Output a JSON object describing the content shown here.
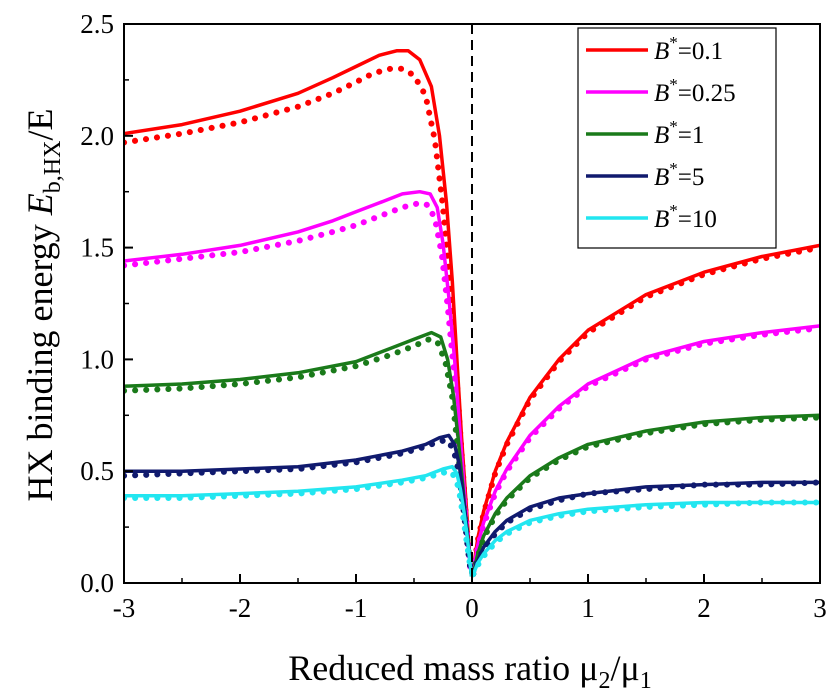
{
  "chart_data": {
    "type": "line",
    "xlabel": "Reduced mass ratio μ2/μ1",
    "xlabel_main": "Reduced mass ratio μ",
    "xlabel_sub1": "2",
    "xlabel_slash": "/μ",
    "xlabel_sub2": "1",
    "ylabel": "HX binding energy E b,HX /E",
    "ylabel_main": "HX binding energy ",
    "ylabel_E": "E",
    "ylabel_sub": "b,HX",
    "ylabel_tail": "/E",
    "xlim": [
      -3,
      3
    ],
    "ylim": [
      0,
      2.5
    ],
    "xticks": [
      -3,
      -2,
      -1,
      0,
      1,
      2,
      3
    ],
    "xtick_labels": [
      "-3",
      "-2",
      "-1",
      "0",
      "1",
      "2",
      "3"
    ],
    "yticks": [
      0,
      0.5,
      1.0,
      1.5,
      2.0,
      2.5
    ],
    "ytick_labels": [
      "0.0",
      "0.5",
      "1.0",
      "1.5",
      "2.0",
      "2.5"
    ],
    "vline_x": 0,
    "legend_position": "top-right",
    "series": [
      {
        "name": "B*=0.1",
        "label_var": "B",
        "label_sup": "*",
        "label_val": "=0.1",
        "color": "#ff0000",
        "solid_neg": [
          [
            -3,
            2.01
          ],
          [
            -2.5,
            2.05
          ],
          [
            -2.0,
            2.11
          ],
          [
            -1.5,
            2.19
          ],
          [
            -1.2,
            2.26
          ],
          [
            -1.0,
            2.31
          ],
          [
            -0.8,
            2.36
          ],
          [
            -0.65,
            2.38
          ],
          [
            -0.55,
            2.38
          ],
          [
            -0.45,
            2.34
          ],
          [
            -0.35,
            2.22
          ],
          [
            -0.28,
            2.0
          ],
          [
            -0.22,
            1.7
          ],
          [
            -0.17,
            1.35
          ],
          [
            -0.13,
            1.0
          ],
          [
            -0.09,
            0.65
          ],
          [
            -0.05,
            0.35
          ],
          [
            -0.02,
            0.12
          ],
          [
            -0.005,
            0.03
          ]
        ],
        "solid_pos": [
          [
            0.005,
            0.04
          ],
          [
            0.05,
            0.2
          ],
          [
            0.1,
            0.32
          ],
          [
            0.2,
            0.5
          ],
          [
            0.3,
            0.63
          ],
          [
            0.5,
            0.83
          ],
          [
            0.75,
            1.0
          ],
          [
            1.0,
            1.13
          ],
          [
            1.5,
            1.29
          ],
          [
            2.0,
            1.39
          ],
          [
            2.5,
            1.46
          ],
          [
            3.0,
            1.51
          ]
        ],
        "dotted_neg": [
          [
            -3,
            1.97
          ],
          [
            -2.5,
            2.01
          ],
          [
            -2.0,
            2.06
          ],
          [
            -1.5,
            2.13
          ],
          [
            -1.2,
            2.19
          ],
          [
            -1.0,
            2.24
          ],
          [
            -0.85,
            2.28
          ],
          [
            -0.7,
            2.3
          ],
          [
            -0.6,
            2.3
          ],
          [
            -0.5,
            2.27
          ],
          [
            -0.4,
            2.18
          ],
          [
            -0.32,
            1.98
          ],
          [
            -0.25,
            1.68
          ],
          [
            -0.19,
            1.33
          ],
          [
            -0.14,
            0.98
          ],
          [
            -0.1,
            0.66
          ],
          [
            -0.06,
            0.36
          ],
          [
            -0.03,
            0.14
          ],
          [
            -0.01,
            0.04
          ]
        ],
        "dotted_pos": [
          [
            0.01,
            0.05
          ],
          [
            0.05,
            0.19
          ],
          [
            0.1,
            0.31
          ],
          [
            0.2,
            0.49
          ],
          [
            0.3,
            0.62
          ],
          [
            0.5,
            0.82
          ],
          [
            0.75,
            0.99
          ],
          [
            1.0,
            1.12
          ],
          [
            1.5,
            1.28
          ],
          [
            2.0,
            1.38
          ],
          [
            2.5,
            1.45
          ],
          [
            3.0,
            1.5
          ]
        ]
      },
      {
        "name": "B*=0.25",
        "label_var": "B",
        "label_sup": "*",
        "label_val": "=0.25",
        "color": "#ff00ff",
        "solid_neg": [
          [
            -3,
            1.44
          ],
          [
            -2.5,
            1.47
          ],
          [
            -2.0,
            1.51
          ],
          [
            -1.5,
            1.57
          ],
          [
            -1.2,
            1.62
          ],
          [
            -1.0,
            1.66
          ],
          [
            -0.8,
            1.7
          ],
          [
            -0.6,
            1.74
          ],
          [
            -0.45,
            1.75
          ],
          [
            -0.36,
            1.74
          ],
          [
            -0.3,
            1.68
          ],
          [
            -0.25,
            1.52
          ],
          [
            -0.2,
            1.28
          ],
          [
            -0.15,
            1.0
          ],
          [
            -0.11,
            0.72
          ],
          [
            -0.07,
            0.44
          ],
          [
            -0.04,
            0.22
          ],
          [
            -0.015,
            0.07
          ]
        ],
        "solid_pos": [
          [
            0.005,
            0.04
          ],
          [
            0.05,
            0.17
          ],
          [
            0.1,
            0.27
          ],
          [
            0.2,
            0.41
          ],
          [
            0.3,
            0.51
          ],
          [
            0.5,
            0.66
          ],
          [
            0.75,
            0.79
          ],
          [
            1.0,
            0.89
          ],
          [
            1.5,
            1.01
          ],
          [
            2.0,
            1.08
          ],
          [
            2.5,
            1.12
          ],
          [
            3.0,
            1.15
          ]
        ],
        "dotted_neg": [
          [
            -3,
            1.42
          ],
          [
            -2.5,
            1.45
          ],
          [
            -2.0,
            1.48
          ],
          [
            -1.5,
            1.53
          ],
          [
            -1.2,
            1.57
          ],
          [
            -1.0,
            1.6
          ],
          [
            -0.8,
            1.64
          ],
          [
            -0.6,
            1.68
          ],
          [
            -0.45,
            1.7
          ],
          [
            -0.38,
            1.69
          ],
          [
            -0.32,
            1.63
          ],
          [
            -0.26,
            1.47
          ],
          [
            -0.21,
            1.24
          ],
          [
            -0.16,
            0.97
          ],
          [
            -0.12,
            0.7
          ],
          [
            -0.08,
            0.43
          ],
          [
            -0.04,
            0.2
          ],
          [
            -0.015,
            0.06
          ]
        ],
        "dotted_pos": [
          [
            0.01,
            0.05
          ],
          [
            0.05,
            0.16
          ],
          [
            0.1,
            0.26
          ],
          [
            0.2,
            0.4
          ],
          [
            0.3,
            0.5
          ],
          [
            0.5,
            0.65
          ],
          [
            0.75,
            0.78
          ],
          [
            1.0,
            0.88
          ],
          [
            1.5,
            1.0
          ],
          [
            2.0,
            1.07
          ],
          [
            2.5,
            1.11
          ],
          [
            3.0,
            1.14
          ]
        ]
      },
      {
        "name": "B*=1",
        "label_var": "B",
        "label_sup": "*",
        "label_val": "=1",
        "color": "#1a7a1a",
        "solid_neg": [
          [
            -3,
            0.88
          ],
          [
            -2.5,
            0.89
          ],
          [
            -2.0,
            0.91
          ],
          [
            -1.5,
            0.94
          ],
          [
            -1.0,
            0.99
          ],
          [
            -0.7,
            1.05
          ],
          [
            -0.5,
            1.09
          ],
          [
            -0.35,
            1.12
          ],
          [
            -0.27,
            1.1
          ],
          [
            -0.21,
            1.0
          ],
          [
            -0.16,
            0.84
          ],
          [
            -0.12,
            0.65
          ],
          [
            -0.08,
            0.44
          ],
          [
            -0.05,
            0.26
          ],
          [
            -0.02,
            0.11
          ],
          [
            -0.005,
            0.03
          ]
        ],
        "solid_pos": [
          [
            0.005,
            0.03
          ],
          [
            0.05,
            0.13
          ],
          [
            0.1,
            0.21
          ],
          [
            0.2,
            0.31
          ],
          [
            0.3,
            0.38
          ],
          [
            0.5,
            0.48
          ],
          [
            0.75,
            0.56
          ],
          [
            1.0,
            0.62
          ],
          [
            1.5,
            0.68
          ],
          [
            2.0,
            0.72
          ],
          [
            2.5,
            0.74
          ],
          [
            3.0,
            0.75
          ]
        ],
        "dotted_neg": [
          [
            -3,
            0.86
          ],
          [
            -2.5,
            0.87
          ],
          [
            -2.0,
            0.89
          ],
          [
            -1.5,
            0.92
          ],
          [
            -1.0,
            0.97
          ],
          [
            -0.7,
            1.02
          ],
          [
            -0.5,
            1.06
          ],
          [
            -0.37,
            1.09
          ],
          [
            -0.3,
            1.08
          ],
          [
            -0.23,
            0.99
          ],
          [
            -0.17,
            0.83
          ],
          [
            -0.13,
            0.64
          ],
          [
            -0.09,
            0.43
          ],
          [
            -0.05,
            0.24
          ],
          [
            -0.02,
            0.1
          ]
        ],
        "dotted_pos": [
          [
            0.01,
            0.04
          ],
          [
            0.05,
            0.12
          ],
          [
            0.1,
            0.2
          ],
          [
            0.2,
            0.3
          ],
          [
            0.3,
            0.37
          ],
          [
            0.5,
            0.47
          ],
          [
            0.75,
            0.55
          ],
          [
            1.0,
            0.61
          ],
          [
            1.5,
            0.67
          ],
          [
            2.0,
            0.71
          ],
          [
            2.5,
            0.73
          ],
          [
            3.0,
            0.74
          ]
        ]
      },
      {
        "name": "B*=5",
        "label_var": "B",
        "label_sup": "*",
        "label_val": "=5",
        "color": "#101a6e",
        "solid_neg": [
          [
            -3,
            0.5
          ],
          [
            -2.5,
            0.5
          ],
          [
            -2.0,
            0.51
          ],
          [
            -1.5,
            0.52
          ],
          [
            -1.0,
            0.55
          ],
          [
            -0.6,
            0.59
          ],
          [
            -0.4,
            0.62
          ],
          [
            -0.28,
            0.65
          ],
          [
            -0.2,
            0.66
          ],
          [
            -0.15,
            0.62
          ],
          [
            -0.11,
            0.53
          ],
          [
            -0.08,
            0.41
          ],
          [
            -0.05,
            0.27
          ],
          [
            -0.02,
            0.12
          ],
          [
            -0.005,
            0.03
          ]
        ],
        "solid_pos": [
          [
            0.005,
            0.03
          ],
          [
            0.05,
            0.1
          ],
          [
            0.1,
            0.16
          ],
          [
            0.2,
            0.23
          ],
          [
            0.3,
            0.28
          ],
          [
            0.5,
            0.34
          ],
          [
            0.75,
            0.38
          ],
          [
            1.0,
            0.4
          ],
          [
            1.5,
            0.43
          ],
          [
            2.0,
            0.44
          ],
          [
            2.5,
            0.45
          ],
          [
            3.0,
            0.45
          ]
        ],
        "dotted_neg": [
          [
            -3,
            0.48
          ],
          [
            -2.5,
            0.49
          ],
          [
            -2.0,
            0.5
          ],
          [
            -1.5,
            0.51
          ],
          [
            -1.0,
            0.54
          ],
          [
            -0.6,
            0.58
          ],
          [
            -0.4,
            0.61
          ],
          [
            -0.3,
            0.63
          ],
          [
            -0.22,
            0.64
          ],
          [
            -0.16,
            0.6
          ],
          [
            -0.12,
            0.51
          ],
          [
            -0.09,
            0.4
          ],
          [
            -0.06,
            0.27
          ],
          [
            -0.03,
            0.13
          ],
          [
            -0.01,
            0.05
          ]
        ],
        "dotted_pos": [
          [
            0.01,
            0.04
          ],
          [
            0.05,
            0.1
          ],
          [
            0.1,
            0.15
          ],
          [
            0.2,
            0.22
          ],
          [
            0.3,
            0.27
          ],
          [
            0.5,
            0.33
          ],
          [
            0.75,
            0.37
          ],
          [
            1.0,
            0.4
          ],
          [
            1.5,
            0.42
          ],
          [
            2.0,
            0.44
          ],
          [
            2.5,
            0.44
          ],
          [
            3.0,
            0.45
          ]
        ]
      },
      {
        "name": "B*=10",
        "label_var": "B",
        "label_sup": "*",
        "label_val": "=10",
        "color": "#22e6f0",
        "solid_neg": [
          [
            -3,
            0.39
          ],
          [
            -2.5,
            0.39
          ],
          [
            -2.0,
            0.4
          ],
          [
            -1.5,
            0.41
          ],
          [
            -1.0,
            0.43
          ],
          [
            -0.6,
            0.46
          ],
          [
            -0.4,
            0.48
          ],
          [
            -0.25,
            0.51
          ],
          [
            -0.17,
            0.52
          ],
          [
            -0.13,
            0.49
          ],
          [
            -0.1,
            0.42
          ],
          [
            -0.07,
            0.32
          ],
          [
            -0.04,
            0.2
          ],
          [
            -0.02,
            0.1
          ],
          [
            -0.005,
            0.03
          ]
        ],
        "solid_pos": [
          [
            0.005,
            0.03
          ],
          [
            0.05,
            0.09
          ],
          [
            0.1,
            0.13
          ],
          [
            0.2,
            0.19
          ],
          [
            0.3,
            0.23
          ],
          [
            0.5,
            0.28
          ],
          [
            0.75,
            0.31
          ],
          [
            1.0,
            0.33
          ],
          [
            1.5,
            0.35
          ],
          [
            2.0,
            0.36
          ],
          [
            2.5,
            0.36
          ],
          [
            3.0,
            0.36
          ]
        ],
        "dotted_neg": [
          [
            -3,
            0.38
          ],
          [
            -2.5,
            0.38
          ],
          [
            -2.0,
            0.39
          ],
          [
            -1.5,
            0.4
          ],
          [
            -1.0,
            0.42
          ],
          [
            -0.6,
            0.45
          ],
          [
            -0.4,
            0.47
          ],
          [
            -0.27,
            0.49
          ],
          [
            -0.19,
            0.5
          ],
          [
            -0.14,
            0.47
          ],
          [
            -0.11,
            0.41
          ],
          [
            -0.08,
            0.31
          ],
          [
            -0.05,
            0.2
          ],
          [
            -0.02,
            0.09
          ]
        ],
        "dotted_pos": [
          [
            0.01,
            0.04
          ],
          [
            0.05,
            0.08
          ],
          [
            0.1,
            0.12
          ],
          [
            0.2,
            0.18
          ],
          [
            0.3,
            0.22
          ],
          [
            0.5,
            0.27
          ],
          [
            0.75,
            0.3
          ],
          [
            1.0,
            0.32
          ],
          [
            1.5,
            0.34
          ],
          [
            2.0,
            0.35
          ],
          [
            2.5,
            0.36
          ],
          [
            3.0,
            0.36
          ]
        ]
      }
    ]
  }
}
